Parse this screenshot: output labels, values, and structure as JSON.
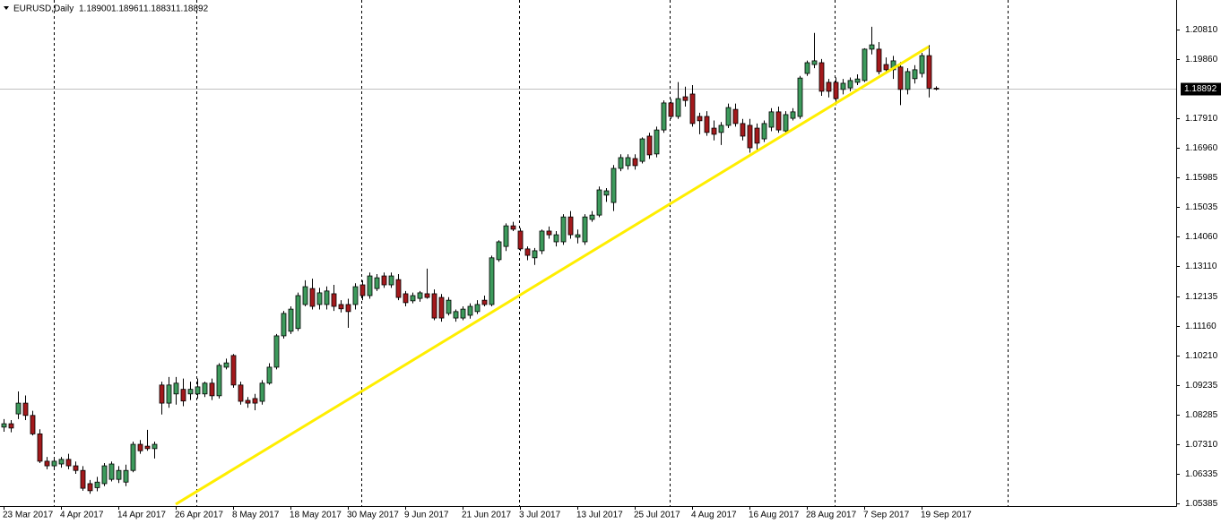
{
  "chart_data": {
    "type": "candlestick",
    "header": {
      "symbol": "EURUSD,Daily",
      "ohlc": [
        "1.18900",
        "1.18961",
        "1.18831",
        "1.18892"
      ]
    },
    "categories": [
      "23 Mar 2017",
      null,
      null,
      null,
      null,
      null,
      null,
      null,
      "4 Apr 2017",
      null,
      null,
      null,
      null,
      null,
      null,
      null,
      "14 Apr 2017",
      null,
      null,
      null,
      null,
      null,
      null,
      null,
      "26 Apr 2017",
      null,
      null,
      null,
      null,
      null,
      null,
      null,
      "8 May 2017",
      null,
      null,
      null,
      null,
      null,
      null,
      null,
      "18 May 2017",
      null,
      null,
      null,
      null,
      null,
      null,
      null,
      "30 May 2017",
      null,
      null,
      null,
      null,
      null,
      null,
      null,
      "9 Jun 2017",
      null,
      null,
      null,
      null,
      null,
      null,
      null,
      "21 Jun 2017",
      null,
      null,
      null,
      null,
      null,
      null,
      null,
      "3 Jul 2017",
      null,
      null,
      null,
      null,
      null,
      null,
      null,
      "13 Jul 2017",
      null,
      null,
      null,
      null,
      null,
      null,
      null,
      "25 Jul 2017",
      null,
      null,
      null,
      null,
      null,
      null,
      null,
      "4 Aug 2017",
      null,
      null,
      null,
      null,
      null,
      null,
      null,
      "16 Aug 2017",
      null,
      null,
      null,
      null,
      null,
      null,
      null,
      "28 Aug 2017",
      null,
      null,
      null,
      null,
      null,
      null,
      null,
      "7 Sep 2017",
      null,
      null,
      null,
      null,
      null,
      null,
      null,
      "19 Sep 2017",
      null,
      null
    ],
    "open": [
      1.0787,
      1.0798,
      1.083,
      1.0865,
      1.0825,
      1.0765,
      1.0676,
      1.0661,
      1.0667,
      1.0682,
      1.0661,
      1.0646,
      1.0603,
      1.059,
      1.0603,
      1.0617,
      1.0617,
      1.0608,
      1.0646,
      1.0731,
      1.0725,
      1.0717,
      1.0924,
      1.0865,
      1.0895,
      1.091,
      1.0895,
      1.0895,
      1.0895,
      1.093,
      1.0889,
      1.0982,
      1.102,
      1.0924,
      1.0874,
      1.088,
      1.0871,
      1.093,
      1.0982,
      1.1084,
      1.1099,
      1.1108,
      1.1186,
      1.1238,
      1.1186,
      1.1186,
      1.1221,
      1.1186,
      1.1186,
      1.1186,
      1.125,
      1.1215,
      1.1238,
      1.1279,
      1.125,
      1.1267,
      1.1221,
      1.1198,
      1.1206,
      1.1221,
      1.1221,
      1.1209,
      1.1157,
      1.1142,
      1.1142,
      1.1151,
      1.1163,
      1.12,
      1.1186,
      1.1332,
      1.1375,
      1.1442,
      1.1425,
      1.1367,
      1.1338,
      1.1361,
      1.1425,
      1.139,
      1.139,
      1.1471,
      1.1405,
      1.139,
      1.1463,
      1.1477,
      1.1542,
      1.1518,
      1.1629,
      1.1638,
      1.1661,
      1.1652,
      1.1734,
      1.1676,
      1.1754,
      1.1842,
      1.1798,
      1.1862,
      1.1871,
      1.1798,
      1.1798,
      1.176,
      1.1746,
      1.1769,
      1.1821,
      1.1775,
      1.1769,
      1.176,
      1.1725,
      1.1763,
      1.1813,
      1.1751,
      1.1792,
      1.1798,
      1.1938,
      1.1967,
      1.1973,
      1.1909,
      1.1909,
      1.1886,
      1.1891,
      1.1909,
      1.1915,
      1.2017,
      1.2017,
      1.1967,
      1.195,
      1.1959,
      1.1886,
      1.1921,
      1.1938,
      1.1996,
      1.189
    ],
    "high": [
      1.0813,
      1.081,
      1.0903,
      1.089,
      1.084,
      1.078,
      1.069,
      1.0685,
      1.069,
      1.07,
      1.0675,
      1.066,
      1.0615,
      1.0625,
      1.067,
      1.0675,
      1.066,
      1.0665,
      1.074,
      1.0745,
      1.0778,
      1.074,
      1.0935,
      1.095,
      1.095,
      1.0945,
      1.0935,
      1.0945,
      1.0935,
      1.0945,
      1.0995,
      1.101,
      1.1025,
      1.0935,
      1.0885,
      1.0895,
      1.094,
      1.0995,
      1.109,
      1.1165,
      1.118,
      1.1225,
      1.1265,
      1.127,
      1.124,
      1.1245,
      1.125,
      1.12,
      1.1205,
      1.1255,
      1.1265,
      1.129,
      1.1285,
      1.129,
      1.129,
      1.1285,
      1.123,
      1.1225,
      1.123,
      1.1303,
      1.1235,
      1.122,
      1.121,
      1.117,
      1.118,
      1.119,
      1.12,
      1.1215,
      1.1345,
      1.1395,
      1.145,
      1.1455,
      1.1435,
      1.1375,
      1.137,
      1.143,
      1.144,
      1.1425,
      1.148,
      1.149,
      1.143,
      1.148,
      1.149,
      1.157,
      1.1565,
      1.164,
      1.1675,
      1.1675,
      1.1675,
      1.173,
      1.1745,
      1.1765,
      1.185,
      1.1855,
      1.191,
      1.1895,
      1.19,
      1.181,
      1.1815,
      1.1785,
      1.178,
      1.184,
      1.184,
      1.179,
      1.179,
      1.1775,
      1.1785,
      1.1825,
      1.183,
      1.1815,
      1.1825,
      1.193,
      1.198,
      1.207,
      1.1985,
      1.192,
      1.1925,
      1.192,
      1.1925,
      1.1935,
      1.202,
      1.209,
      1.204,
      1.199,
      1.1995,
      1.1975,
      1.1955,
      1.1965,
      1.2005,
      1.203,
      1.18961
    ],
    "low": [
      1.0772,
      1.077,
      1.0813,
      1.081,
      1.076,
      1.067,
      1.065,
      1.065,
      1.0655,
      1.065,
      1.0635,
      1.058,
      1.057,
      1.0578,
      1.0595,
      1.061,
      1.0605,
      1.0595,
      1.064,
      1.07,
      1.071,
      1.0685,
      1.0828,
      1.085,
      1.086,
      1.0855,
      1.0875,
      1.088,
      1.0885,
      1.0875,
      1.088,
      1.0975,
      1.0915,
      1.086,
      1.085,
      1.0842,
      1.086,
      1.0925,
      1.0975,
      1.1075,
      1.109,
      1.11,
      1.118,
      1.117,
      1.117,
      1.117,
      1.1165,
      1.116,
      1.111,
      1.117,
      1.12,
      1.1205,
      1.123,
      1.124,
      1.124,
      1.12,
      1.118,
      1.119,
      1.1195,
      1.1205,
      1.1135,
      1.113,
      1.115,
      1.113,
      1.1135,
      1.114,
      1.1155,
      1.118,
      1.118,
      1.1325,
      1.136,
      1.1425,
      1.136,
      1.133,
      1.1315,
      1.135,
      1.14,
      1.1375,
      1.138,
      1.14,
      1.1385,
      1.138,
      1.1455,
      1.147,
      1.152,
      1.149,
      1.162,
      1.1625,
      1.1625,
      1.1645,
      1.166,
      1.1665,
      1.1745,
      1.179,
      1.179,
      1.183,
      1.1765,
      1.174,
      1.1735,
      1.172,
      1.1705,
      1.176,
      1.1765,
      1.172,
      1.168,
      1.169,
      1.1715,
      1.175,
      1.1745,
      1.174,
      1.1785,
      1.179,
      1.193,
      1.1955,
      1.1865,
      1.186,
      1.1835,
      1.187,
      1.188,
      1.19,
      1.191,
      1.2,
      1.1935,
      1.194,
      1.192,
      1.1835,
      1.187,
      1.1905,
      1.1925,
      1.186,
      1.18831
    ],
    "close": [
      1.0798,
      1.0784,
      1.0865,
      1.0825,
      1.0765,
      1.0676,
      1.0661,
      1.0676,
      1.0682,
      1.0661,
      1.0646,
      1.0588,
      1.058,
      1.0608,
      1.0661,
      1.0667,
      1.0646,
      1.0646,
      1.0731,
      1.071,
      1.0717,
      1.0731,
      1.0865,
      1.0924,
      1.093,
      1.0872,
      1.091,
      1.0918,
      1.093,
      1.0889,
      1.0988,
      1.0996,
      1.0924,
      1.0871,
      1.0865,
      1.0865,
      1.093,
      1.0982,
      1.1084,
      1.1157,
      1.1171,
      1.1215,
      1.1244,
      1.118,
      1.1224,
      1.123,
      1.118,
      1.1172,
      1.1163,
      1.1244,
      1.1215,
      1.1279,
      1.1273,
      1.125,
      1.1279,
      1.1209,
      1.1192,
      1.1215,
      1.1224,
      1.1209,
      1.1142,
      1.1142,
      1.12,
      1.1163,
      1.1171,
      1.118,
      1.1186,
      1.1186,
      1.1338,
      1.139,
      1.1442,
      1.1431,
      1.1367,
      1.1346,
      1.1361,
      1.1425,
      1.1413,
      1.1413,
      1.1471,
      1.1413,
      1.1413,
      1.1471,
      1.1477,
      1.1559,
      1.1556,
      1.1629,
      1.1664,
      1.1664,
      1.1638,
      1.1725,
      1.1673,
      1.1754,
      1.1842,
      1.1798,
      1.1856,
      1.185,
      1.1775,
      1.1784,
      1.1746,
      1.174,
      1.1769,
      1.1827,
      1.1775,
      1.1734,
      1.1696,
      1.1711,
      1.1775,
      1.1813,
      1.1754,
      1.1804,
      1.1813,
      1.1923,
      1.1973,
      1.1979,
      1.188,
      1.188,
      1.1856,
      1.1906,
      1.1915,
      1.192,
      1.2017,
      1.2031,
      1.1944,
      1.195,
      1.1979,
      1.1886,
      1.1944,
      1.195,
      1.1996,
      1.189,
      1.18892
    ],
    "up_color": "#3d9a5c",
    "down_color": "#a3191c",
    "ylim": [
      1.053,
      1.2177
    ],
    "yticks": [
      {
        "value": 1.2081,
        "label": "1.20810"
      },
      {
        "value": 1.1986,
        "label": "1.19860"
      },
      {
        "value": 1.1791,
        "label": "1.17910"
      },
      {
        "value": 1.1696,
        "label": "1.16960"
      },
      {
        "value": 1.15985,
        "label": "1.15985"
      },
      {
        "value": 1.15035,
        "label": "1.15035"
      },
      {
        "value": 1.1406,
        "label": "1.14060"
      },
      {
        "value": 1.1311,
        "label": "1.13110"
      },
      {
        "value": 1.12135,
        "label": "1.12135"
      },
      {
        "value": 1.1116,
        "label": "1.11160"
      },
      {
        "value": 1.1021,
        "label": "1.10210"
      },
      {
        "value": 1.09235,
        "label": "1.09235"
      },
      {
        "value": 1.08285,
        "label": "1.08285"
      },
      {
        "value": 1.0731,
        "label": "1.07310"
      },
      {
        "value": 1.06335,
        "label": "1.06335"
      },
      {
        "value": 1.05385,
        "label": "1.05385"
      }
    ],
    "price_line": {
      "value": 1.18892,
      "label": "1.18892"
    },
    "trendline": {
      "x": [
        24,
        129
      ],
      "y": [
        1.0536,
        1.2025
      ],
      "color": "#ffee00"
    }
  }
}
